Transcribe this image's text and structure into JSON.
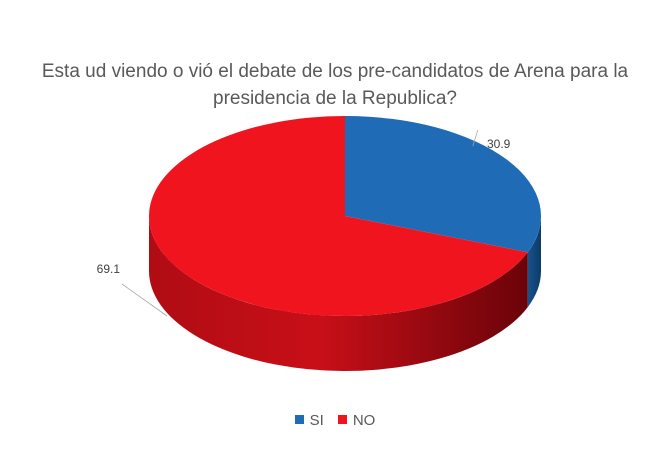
{
  "chart_data": {
    "type": "pie",
    "style": "3d",
    "title": "Esta ud viendo o vió el debate de los pre-candidatos de Arena para la presidencia de la Republica?",
    "slices": [
      {
        "name": "SI",
        "value": 30.9,
        "label": "30.9",
        "color": "#1f6bb6"
      },
      {
        "name": "NO",
        "value": 69.1,
        "label": "69.1",
        "color": "#f0141e"
      }
    ],
    "legend_position": "bottom"
  }
}
